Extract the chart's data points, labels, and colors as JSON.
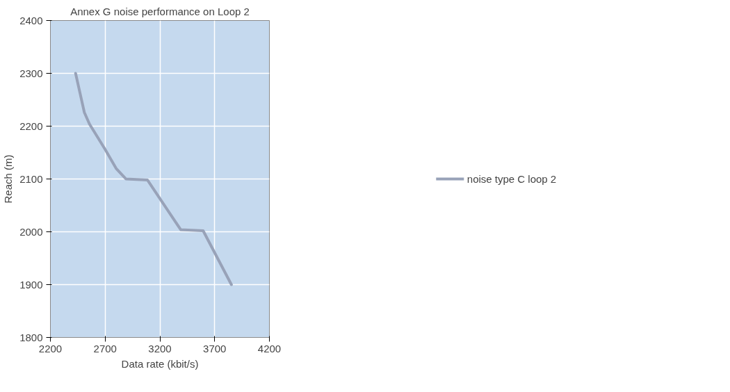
{
  "chart_data": {
    "type": "line",
    "title": "Annex G noise performance on Loop 2",
    "xlabel": "Data rate (kbit/s)",
    "ylabel": "Reach (m)",
    "series": [
      {
        "name": "noise type C loop 2",
        "color": "#98a2b8",
        "x": [
          2430,
          2470,
          2510,
          2557,
          2700,
          2800,
          2890,
          3087,
          3390,
          3595,
          3853
        ],
        "values": [
          2300,
          2263,
          2226,
          2204,
          2156,
          2120,
          2100,
          2098,
          2004,
          2002,
          1900
        ]
      }
    ],
    "xlim": [
      2200,
      4200
    ],
    "xticks": [
      2200,
      2700,
      3200,
      3700,
      4200
    ],
    "ylim": [
      1800,
      2400
    ],
    "yticks": [
      1800,
      1900,
      2000,
      2100,
      2200,
      2300,
      2400
    ],
    "grid": true,
    "legend": "right",
    "marker": "none",
    "line_style": "solid"
  }
}
